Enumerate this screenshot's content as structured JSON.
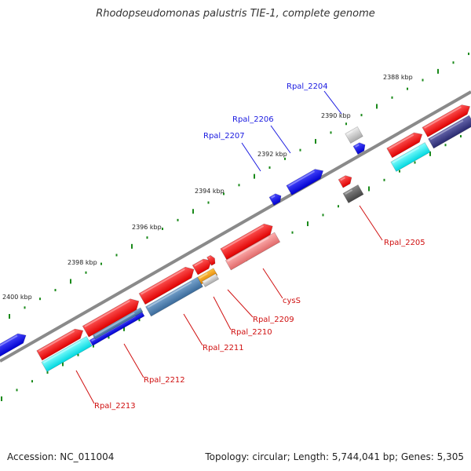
{
  "title": "Rhodopseudomonas palustris TIE-1, complete genome",
  "footer": {
    "accession": "Accession: NC_011004",
    "topology": "Topology: circular; Length: 5,744,041 bp; Genes: 5,305"
  },
  "colors": {
    "backbone": "#808080",
    "tick": "#1a8a1a",
    "forward_gene": "#ff1a1a",
    "reverse_gene": "#1a1aff",
    "red_label": "#d01010",
    "blue_label": "#1a1ae0"
  },
  "scale_labels": [
    {
      "kbp": 2388,
      "label": "2388 kbp"
    },
    {
      "kbp": 2390,
      "label": "2390 kbp"
    },
    {
      "kbp": 2392,
      "label": "2392 kbp"
    },
    {
      "kbp": 2394,
      "label": "2394 kbp"
    },
    {
      "kbp": 2396,
      "label": "2396 kbp"
    },
    {
      "kbp": 2398,
      "label": "2398 kbp"
    },
    {
      "kbp": 2400,
      "label": "2400 kbp"
    }
  ],
  "gene_labels": [
    {
      "name": "Rpal_2204",
      "color": "blue"
    },
    {
      "name": "Rpal_2205",
      "color": "red"
    },
    {
      "name": "Rpal_2206",
      "color": "blue"
    },
    {
      "name": "Rpal_2207",
      "color": "blue"
    },
    {
      "name": "cysS",
      "color": "red"
    },
    {
      "name": "Rpal_2209",
      "color": "red"
    },
    {
      "name": "Rpal_2210",
      "color": "red"
    },
    {
      "name": "Rpal_2211",
      "color": "red"
    },
    {
      "name": "Rpal_2212",
      "color": "red"
    },
    {
      "name": "Rpal_2213",
      "color": "red"
    }
  ]
}
